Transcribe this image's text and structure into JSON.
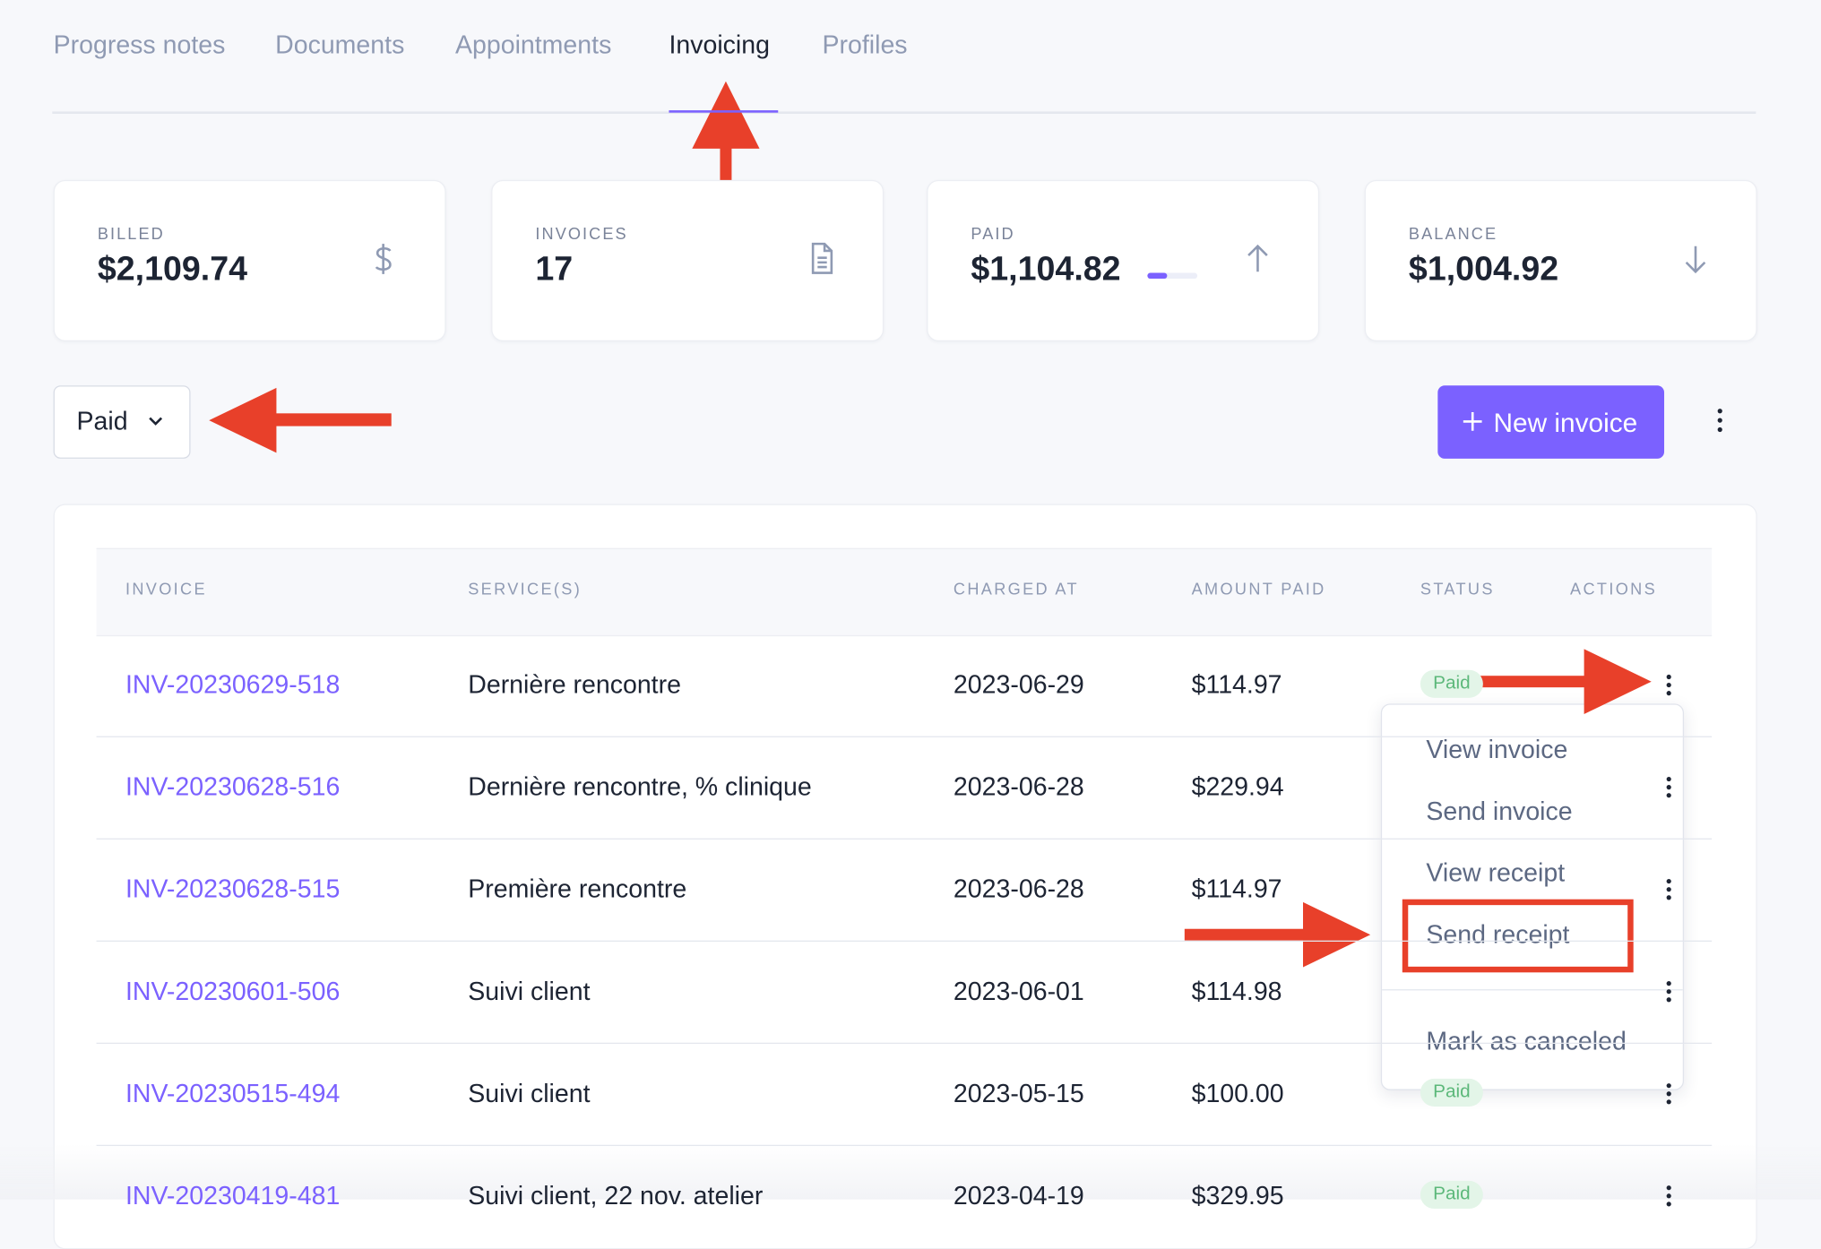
{
  "tabs": [
    "Progress notes",
    "Documents",
    "Appointments",
    "Invoicing",
    "Profiles"
  ],
  "active_tab": 3,
  "stats": [
    {
      "label": "BILLED",
      "value": "$2,109.74"
    },
    {
      "label": "INVOICES",
      "value": "17"
    },
    {
      "label": "PAID",
      "value": "$1,104.82"
    },
    {
      "label": "BALANCE",
      "value": "$1,004.92"
    }
  ],
  "filter": "Paid",
  "new_invoice_button": "New invoice",
  "table": {
    "headers": [
      "INVOICE",
      "SERVICE(S)",
      "CHARGED AT",
      "AMOUNT PAID",
      "STATUS",
      "ACTIONS"
    ],
    "rows": [
      {
        "invoice": "INV-20230629-518",
        "services": "Dernière rencontre",
        "charged_at": "2023-06-29",
        "amount_paid": "$114.97",
        "status": "Paid"
      },
      {
        "invoice": "INV-20230628-516",
        "services": "Dernière rencontre, % clinique",
        "charged_at": "2023-06-28",
        "amount_paid": "$229.94"
      },
      {
        "invoice": "INV-20230628-515",
        "services": "Première rencontre",
        "charged_at": "2023-06-28",
        "amount_paid": "$114.97"
      },
      {
        "invoice": "INV-20230601-506",
        "services": "Suivi client",
        "charged_at": "2023-06-01",
        "amount_paid": "$114.98"
      },
      {
        "invoice": "INV-20230515-494",
        "services": "Suivi client",
        "charged_at": "2023-05-15",
        "amount_paid": "$100.00",
        "status": "Paid"
      },
      {
        "invoice": "INV-20230419-481",
        "services": "Suivi client, 22 nov. atelier",
        "charged_at": "2023-04-19",
        "amount_paid": "$329.95",
        "status": "Paid"
      }
    ]
  },
  "action_menu": {
    "items": [
      "View invoice",
      "Send invoice",
      "View receipt",
      "Send receipt"
    ],
    "danger_items": [
      "Mark as canceled"
    ],
    "highlighted": 3
  }
}
